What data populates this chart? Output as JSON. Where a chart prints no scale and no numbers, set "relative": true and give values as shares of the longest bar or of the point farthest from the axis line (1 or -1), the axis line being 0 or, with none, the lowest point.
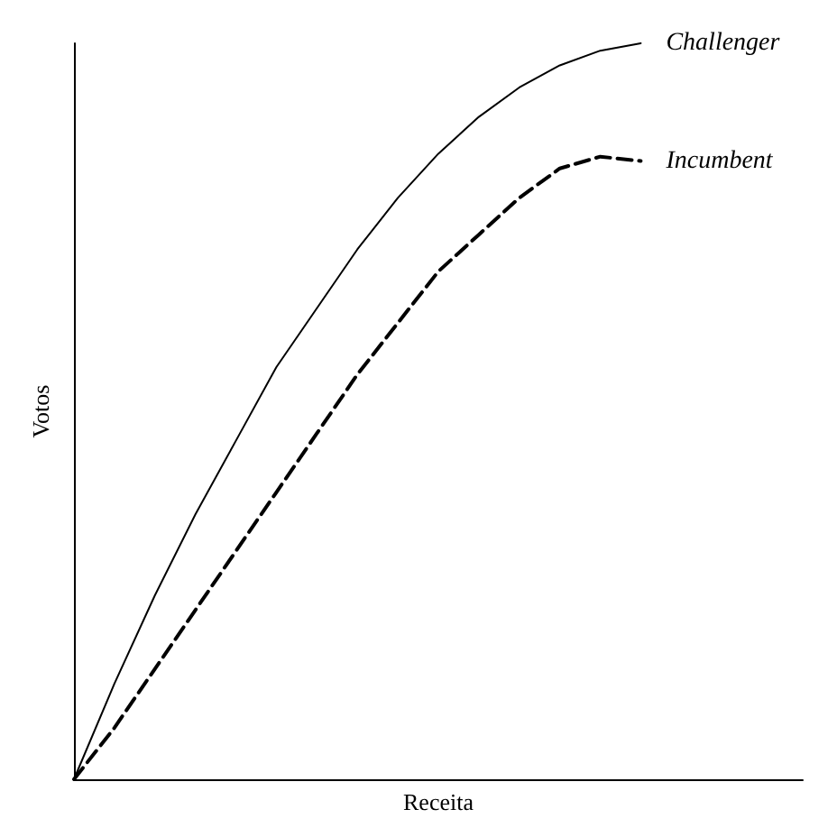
{
  "chart_data": {
    "type": "line",
    "relative": true,
    "xlabel": "Receita",
    "ylabel": "Votos",
    "categories": [
      null,
      null,
      null,
      null,
      null,
      null,
      null,
      null,
      null,
      null,
      null,
      null,
      null,
      null,
      null,
      null,
      null,
      null,
      null
    ],
    "series": [
      {
        "name": "Challenger",
        "color": "#000000",
        "line_style": "solid",
        "values": [
          0,
          0.13,
          0.25,
          0.36,
          0.46,
          0.56,
          0.64,
          0.72,
          0.79,
          0.85,
          0.9,
          0.94,
          0.97,
          0.99,
          1,
          null,
          null,
          null,
          null
        ]
      },
      {
        "name": "Incumbent",
        "color": "#000000",
        "line_style": "dashed",
        "values": [
          0,
          0.07,
          0.15,
          0.23,
          0.31,
          0.39,
          0.47,
          0.55,
          0.62,
          0.69,
          0.74,
          0.79,
          0.83,
          0.846,
          0.84,
          null,
          null,
          null,
          null
        ]
      }
    ],
    "grid": false,
    "legend": false,
    "marker": "none"
  }
}
